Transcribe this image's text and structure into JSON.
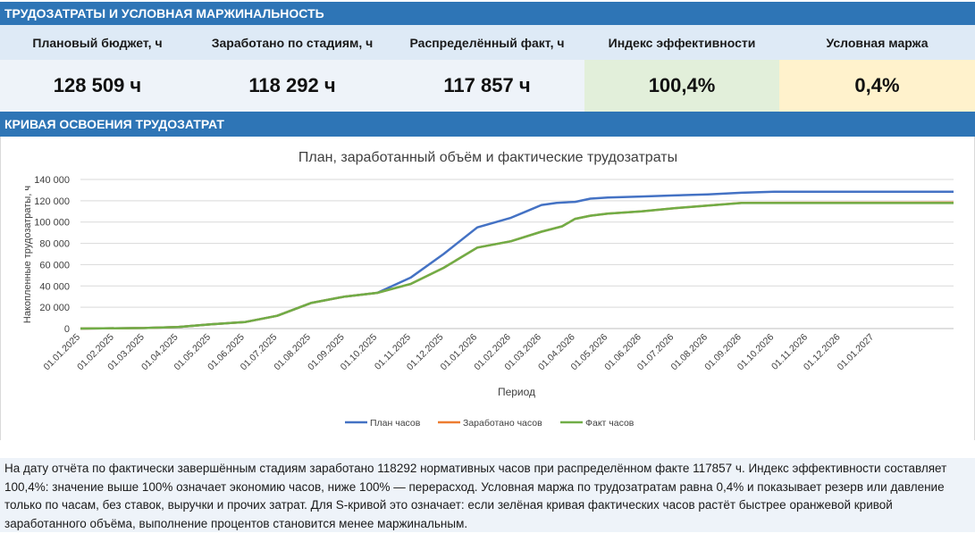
{
  "header": {
    "title": "ТРУДОЗАТРАТЫ И УСЛОВНАЯ МАРЖИНАЛЬНОСТЬ"
  },
  "kpis": [
    {
      "label": "Плановый бюджет, ч",
      "value": "128 509 ч"
    },
    {
      "label": "Заработано по стадиям, ч",
      "value": "118 292 ч"
    },
    {
      "label": "Распределённый факт, ч",
      "value": "117 857 ч"
    },
    {
      "label": "Индекс эффективности",
      "value": "100,4%"
    },
    {
      "label": "Условная маржа",
      "value": "0,4%"
    }
  ],
  "section2": {
    "title": "КРИВАЯ ОСВОЕНИЯ ТРУДОЗАТРАТ"
  },
  "chart_data": {
    "type": "line",
    "title": "План, заработанный объём и фактические трудозатраты",
    "xlabel": "Период",
    "ylabel": "Накопленные трудозатраты, ч",
    "ylim": [
      0,
      140000
    ],
    "yticks": [
      0,
      20000,
      40000,
      60000,
      80000,
      100000,
      120000,
      140000
    ],
    "ytick_labels": [
      "0",
      "20 000",
      "40 000",
      "60 000",
      "80 000",
      "100 000",
      "120 000",
      "140 000"
    ],
    "xlim": [
      "2025-01-01",
      "2027-03-15"
    ],
    "x_tick_labels": [
      "01.01.2025",
      "01.02.2025",
      "01.03.2025",
      "01.04.2025",
      "01.05.2025",
      "01.06.2025",
      "01.07.2025",
      "01.08.2025",
      "01.09.2025",
      "01.10.2025",
      "01.11.2025",
      "01.12.2025",
      "01.01.2026",
      "01.02.2026",
      "01.03.2026",
      "01.04.2026",
      "01.05.2026",
      "01.06.2026",
      "01.07.2026",
      "01.08.2026",
      "01.09.2026",
      "01.10.2026",
      "01.11.2026",
      "01.12.2026",
      "01.01.2027"
    ],
    "grid": true,
    "legend_position": "bottom",
    "series": [
      {
        "name": "План часов",
        "color": "#4472c4",
        "points": [
          [
            "2025-01-01",
            0
          ],
          [
            "2025-03-01",
            500
          ],
          [
            "2025-04-01",
            1500
          ],
          [
            "2025-05-01",
            4000
          ],
          [
            "2025-06-01",
            6000
          ],
          [
            "2025-07-01",
            12000
          ],
          [
            "2025-08-01",
            24000
          ],
          [
            "2025-09-01",
            30000
          ],
          [
            "2025-10-01",
            33500
          ],
          [
            "2025-11-01",
            48000
          ],
          [
            "2025-12-01",
            70000
          ],
          [
            "2026-01-01",
            95000
          ],
          [
            "2026-02-01",
            104000
          ],
          [
            "2026-02-15",
            110000
          ],
          [
            "2026-03-01",
            116000
          ],
          [
            "2026-03-15",
            118000
          ],
          [
            "2026-04-01",
            119000
          ],
          [
            "2026-04-15",
            122000
          ],
          [
            "2026-05-01",
            123000
          ],
          [
            "2026-06-01",
            124000
          ],
          [
            "2026-07-01",
            125000
          ],
          [
            "2026-08-01",
            126000
          ],
          [
            "2026-09-01",
            127500
          ],
          [
            "2026-10-01",
            128500
          ],
          [
            "2027-03-15",
            128509
          ]
        ]
      },
      {
        "name": "Заработано часов",
        "color": "#ed7d31",
        "points": [
          [
            "2025-01-01",
            0
          ],
          [
            "2025-03-01",
            500
          ],
          [
            "2025-04-01",
            1500
          ],
          [
            "2025-05-01",
            4000
          ],
          [
            "2025-06-01",
            6000
          ],
          [
            "2025-07-01",
            12000
          ],
          [
            "2025-08-01",
            24000
          ],
          [
            "2025-09-01",
            30000
          ],
          [
            "2025-10-01",
            33500
          ],
          [
            "2025-11-01",
            42000
          ],
          [
            "2025-12-01",
            57000
          ],
          [
            "2026-01-01",
            76000
          ],
          [
            "2026-02-01",
            82000
          ],
          [
            "2026-03-01",
            91000
          ],
          [
            "2026-03-20",
            96000
          ],
          [
            "2026-04-01",
            103000
          ],
          [
            "2026-04-15",
            106000
          ],
          [
            "2026-05-01",
            108000
          ],
          [
            "2026-06-01",
            110000
          ],
          [
            "2026-07-01",
            113000
          ],
          [
            "2026-08-01",
            115500
          ],
          [
            "2026-09-01",
            118000
          ],
          [
            "2027-03-15",
            118292
          ]
        ]
      },
      {
        "name": "Факт часов",
        "color": "#70ad47",
        "points": [
          [
            "2025-01-01",
            0
          ],
          [
            "2025-03-01",
            500
          ],
          [
            "2025-04-01",
            1500
          ],
          [
            "2025-05-01",
            4000
          ],
          [
            "2025-06-01",
            6000
          ],
          [
            "2025-07-01",
            12000
          ],
          [
            "2025-08-01",
            24000
          ],
          [
            "2025-09-01",
            30000
          ],
          [
            "2025-10-01",
            33500
          ],
          [
            "2025-11-01",
            42000
          ],
          [
            "2025-12-01",
            57000
          ],
          [
            "2026-01-01",
            76000
          ],
          [
            "2026-02-01",
            82000
          ],
          [
            "2026-03-01",
            91000
          ],
          [
            "2026-03-20",
            96000
          ],
          [
            "2026-04-01",
            103000
          ],
          [
            "2026-04-15",
            106000
          ],
          [
            "2026-05-01",
            108000
          ],
          [
            "2026-06-01",
            110000
          ],
          [
            "2026-07-01",
            113000
          ],
          [
            "2026-08-01",
            115500
          ],
          [
            "2026-09-01",
            117857
          ],
          [
            "2027-03-15",
            117857
          ]
        ]
      }
    ]
  },
  "note": {
    "text": "На дату отчёта по фактически завершённым стадиям заработано 118292 нормативных часов при распределённом факте 117857 ч. Индекс эффективности составляет 100,4%: значение выше 100% означает экономию часов, ниже 100% — перерасход. Условная маржа по трудозатратам равна 0,4% и показывает резерв или давление только по часам, без ставок, выручки и прочих затрат. Для S-кривой это означает: если зелёная кривая фактических часов растёт быстрее оранжевой кривой заработанного объёма, выполнение процентов становится менее маржинальным."
  }
}
